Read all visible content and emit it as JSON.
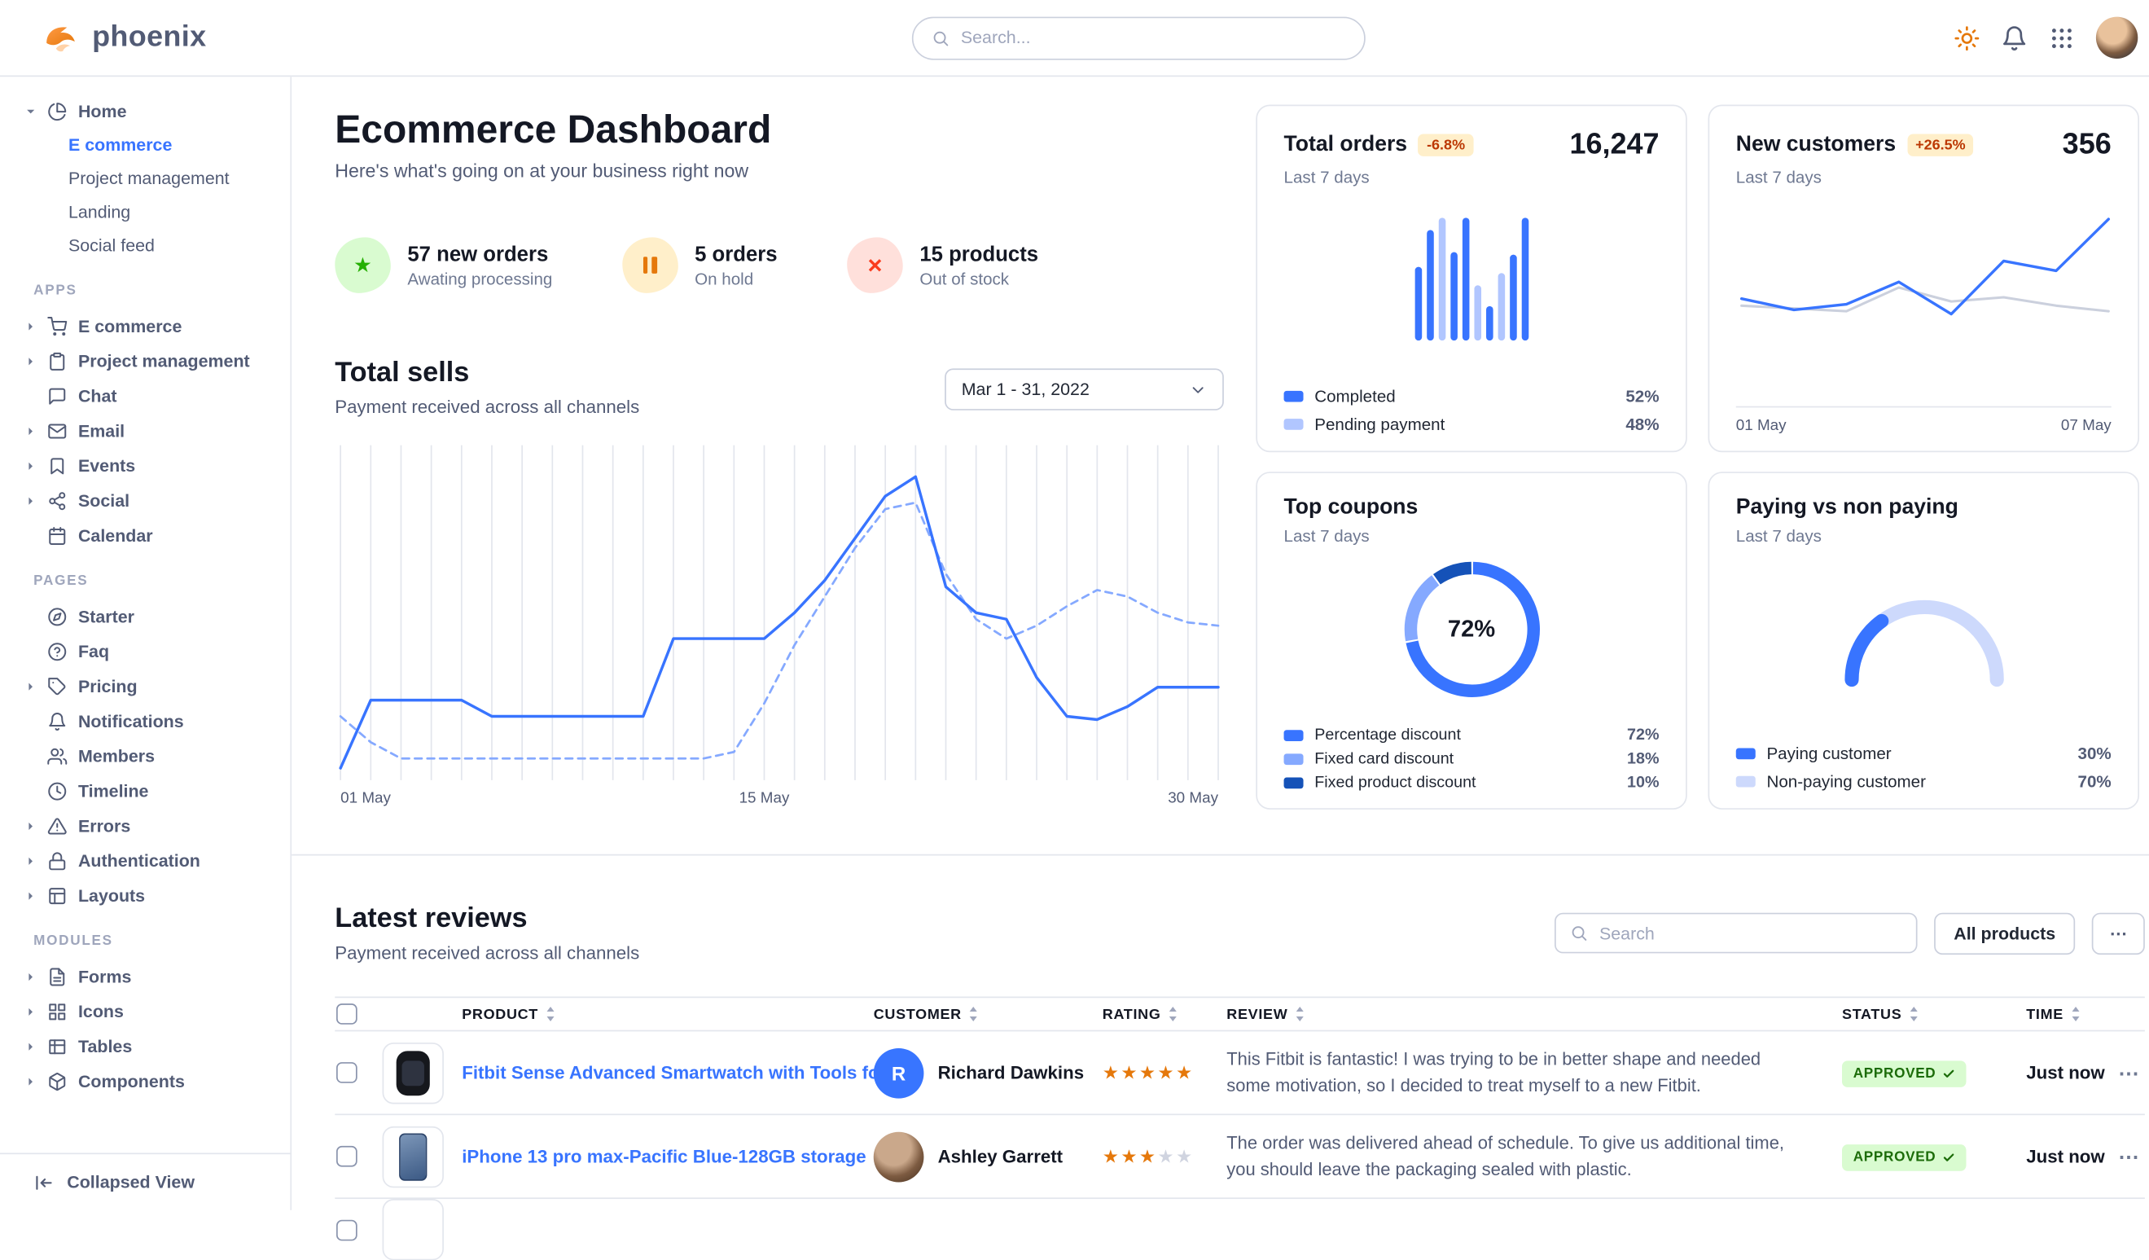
{
  "navbar": {
    "brand": "phoenix",
    "search_placeholder": "Search...",
    "actions": [
      {
        "icon": "sun",
        "name": "theme-toggle"
      },
      {
        "icon": "bell",
        "name": "notifications"
      },
      {
        "icon": "grid-3x3",
        "name": "apps-menu"
      },
      {
        "icon": "avatar",
        "name": "profile"
      }
    ]
  },
  "sidebar": {
    "groups": [
      {
        "title": "",
        "items": [
          {
            "label": "Home",
            "icon": "pie-chart",
            "caret": "down",
            "children": [
              {
                "label": "E commerce",
                "active": true
              },
              {
                "label": "Project management",
                "active": false
              },
              {
                "label": "Landing",
                "active": false
              },
              {
                "label": "Social feed",
                "active": false
              }
            ]
          }
        ]
      },
      {
        "title": "APPS",
        "items": [
          {
            "label": "E commerce",
            "icon": "shopping-cart",
            "caret": "right"
          },
          {
            "label": "Project management",
            "icon": "clipboard",
            "caret": "right"
          },
          {
            "label": "Chat",
            "icon": "message-square"
          },
          {
            "label": "Email",
            "icon": "mail",
            "caret": "right"
          },
          {
            "label": "Events",
            "icon": "bookmark",
            "caret": "right"
          },
          {
            "label": "Social",
            "icon": "share-2",
            "caret": "right"
          },
          {
            "label": "Calendar",
            "icon": "calendar"
          }
        ]
      },
      {
        "title": "PAGES",
        "items": [
          {
            "label": "Starter",
            "icon": "compass"
          },
          {
            "label": "Faq",
            "icon": "help-circle"
          },
          {
            "label": "Pricing",
            "icon": "tag",
            "caret": "right"
          },
          {
            "label": "Notifications",
            "icon": "bell"
          },
          {
            "label": "Members",
            "icon": "users"
          },
          {
            "label": "Timeline",
            "icon": "clock"
          },
          {
            "label": "Errors",
            "icon": "alert-triangle",
            "caret": "right"
          },
          {
            "label": "Authentication",
            "icon": "lock",
            "caret": "right"
          },
          {
            "label": "Layouts",
            "icon": "layout",
            "caret": "right"
          }
        ]
      },
      {
        "title": "MODULES",
        "items": [
          {
            "label": "Forms",
            "icon": "file-text",
            "caret": "right"
          },
          {
            "label": "Icons",
            "icon": "grid",
            "caret": "right"
          },
          {
            "label": "Tables",
            "icon": "table",
            "caret": "right"
          },
          {
            "label": "Components",
            "icon": "box",
            "caret": "right"
          }
        ]
      }
    ],
    "footer": {
      "label": "Collapsed View"
    }
  },
  "page": {
    "title": "Ecommerce Dashboard",
    "subtitle": "Here's what's going on at your business right now"
  },
  "stats": [
    {
      "value": "57 new orders",
      "caption": "Awating processing",
      "icon": "star",
      "theme": "success"
    },
    {
      "value": "5 orders",
      "caption": "On hold",
      "icon": "pause",
      "theme": "warning"
    },
    {
      "value": "15 products",
      "caption": "Out of stock",
      "icon": "x",
      "theme": "danger"
    }
  ],
  "total_sells": {
    "title": "Total sells",
    "subtitle": "Payment received across all channels",
    "date_range": "Mar 1 - 31, 2022"
  },
  "cards": {
    "total_orders": {
      "title": "Total orders",
      "badge": "-6.8%",
      "period": "Last 7 days",
      "value": "16,247",
      "legend": [
        {
          "label": "Completed",
          "value": "52%",
          "color": "#3874ff"
        },
        {
          "label": "Pending payment",
          "value": "48%",
          "color": "#b1c6ff"
        }
      ]
    },
    "new_customers": {
      "title": "New customers",
      "badge": "+26.5%",
      "period": "Last 7 days",
      "value": "356",
      "x_labels": [
        "01 May",
        "07 May"
      ]
    },
    "top_coupons": {
      "title": "Top coupons",
      "period": "Last 7 days",
      "center_label": "72%",
      "legend": [
        {
          "label": "Percentage discount",
          "value": "72%",
          "color": "#3874ff"
        },
        {
          "label": "Fixed card discount",
          "value": "18%",
          "color": "#85a9ff"
        },
        {
          "label": "Fixed product discount",
          "value": "10%",
          "color": "#1552b8"
        }
      ]
    },
    "paying": {
      "title": "Paying vs non paying",
      "period": "Last 7 days",
      "legend": [
        {
          "label": "Paying customer",
          "value": "30%",
          "color": "#3874ff"
        },
        {
          "label": "Non-paying customer",
          "value": "70%",
          "color": "#cdd9fc"
        }
      ]
    }
  },
  "chart_data": [
    {
      "id": "total-sells",
      "type": "line",
      "title": "Total sells",
      "x_labels": [
        "01 May",
        "15 May",
        "30 May"
      ],
      "ylim": [
        0,
        100
      ],
      "grid": "vertical",
      "series": [
        {
          "name": "previous",
          "style": "dashed",
          "color": "#85a9ff",
          "values": [
            18,
            10,
            5,
            5,
            5,
            5,
            5,
            5,
            5,
            5,
            5,
            5,
            5,
            7,
            22,
            40,
            55,
            70,
            82,
            84,
            62,
            48,
            42,
            46,
            52,
            57,
            55,
            50,
            47,
            46
          ]
        },
        {
          "name": "current",
          "style": "solid",
          "color": "#3874ff",
          "values": [
            2,
            23,
            23,
            23,
            23,
            18,
            18,
            18,
            18,
            18,
            18,
            42,
            42,
            42,
            42,
            50,
            60,
            73,
            86,
            92,
            58,
            50,
            48,
            30,
            18,
            17,
            21,
            27,
            27,
            27
          ]
        }
      ]
    },
    {
      "id": "total-orders",
      "type": "bar",
      "title": "Total orders",
      "ylim": [
        0,
        100
      ],
      "values": [
        60,
        90,
        100,
        72,
        100,
        45,
        28,
        55,
        70,
        100
      ],
      "colors": [
        "#3874ff",
        "#3874ff",
        "#b1c6ff",
        "#3874ff",
        "#3874ff",
        "#b1c6ff",
        "#3874ff",
        "#b1c6ff",
        "#3874ff",
        "#3874ff"
      ]
    },
    {
      "id": "new-customers",
      "type": "line",
      "title": "New customers",
      "x_labels": [
        "01 May",
        "07 May"
      ],
      "ylim": [
        0,
        100
      ],
      "series": [
        {
          "name": "previous",
          "style": "solid",
          "color": "#cbd0dd",
          "values": [
            33,
            31,
            29,
            46,
            36,
            39,
            33,
            29
          ]
        },
        {
          "name": "current",
          "style": "solid",
          "color": "#3874ff",
          "values": [
            38,
            30,
            34,
            50,
            27,
            65,
            58,
            95
          ]
        }
      ]
    },
    {
      "id": "top-coupons",
      "type": "donut",
      "title": "Top coupons",
      "center_label": "72%",
      "slices": [
        {
          "label": "Percentage discount",
          "value": 72,
          "color": "#3874ff"
        },
        {
          "label": "Fixed card discount",
          "value": 18,
          "color": "#85a9ff"
        },
        {
          "label": "Fixed product discount",
          "value": 10,
          "color": "#1552b8"
        }
      ]
    },
    {
      "id": "paying-gauge",
      "type": "gauge",
      "title": "Paying vs non paying",
      "slices": [
        {
          "label": "Paying customer",
          "value": 30,
          "color": "#3874ff"
        },
        {
          "label": "Non-paying customer",
          "value": 70,
          "color": "#cdd9fc"
        }
      ]
    }
  ],
  "reviews": {
    "title": "Latest reviews",
    "subtitle": "Payment received across all channels",
    "search_placeholder": "Search",
    "filter_label": "All products",
    "more_label": "⋯",
    "columns": [
      "PRODUCT",
      "CUSTOMER",
      "RATING",
      "REVIEW",
      "STATUS",
      "TIME"
    ],
    "rows": [
      {
        "product": "Fitbit Sense Advanced Smartwatch with Tools fo...",
        "thumb": "smartwatch",
        "customer": "Richard Dawkins",
        "avatar": {
          "type": "initial",
          "text": "R"
        },
        "rating": 5,
        "review": "This Fitbit is fantastic! I was trying to be in better shape and needed some motivation, so I decided to treat myself to a new Fitbit.",
        "status": "APPROVED",
        "time": "Just now"
      },
      {
        "product": "iPhone 13 pro max-Pacific Blue-128GB storage",
        "thumb": "iphone",
        "customer": "Ashley Garrett",
        "avatar": {
          "type": "photo"
        },
        "rating": 3,
        "review": "The order was delivered ahead of schedule. To give us additional time, you should leave the packaging sealed with plastic.",
        "status": "APPROVED",
        "time": "Just now"
      }
    ]
  }
}
